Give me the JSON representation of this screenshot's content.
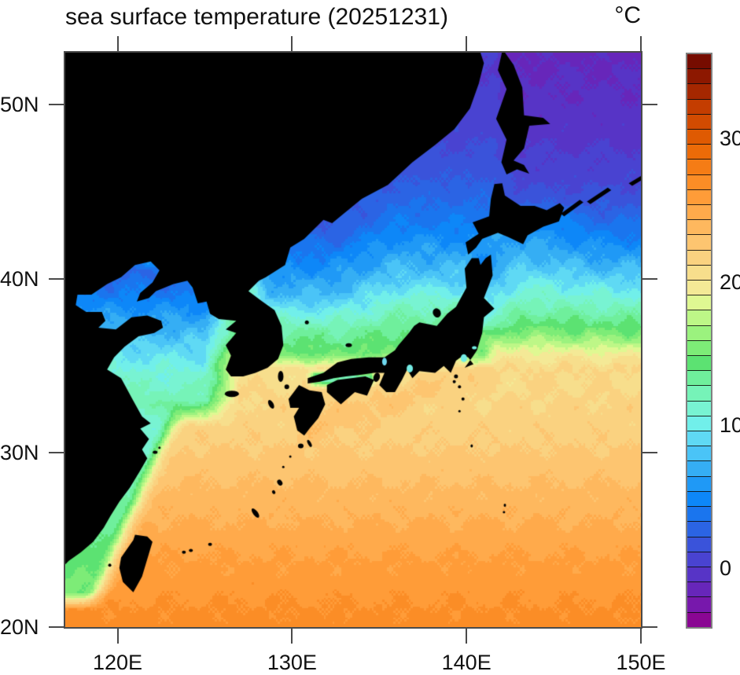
{
  "title": "sea surface temperature (20251231)",
  "units_label": "°C",
  "chart_data": {
    "type": "heatmap",
    "subject": "sea surface temperature",
    "date_shown": "20251231",
    "units": "°C",
    "extent": {
      "lon_min": 117,
      "lon_max": 150,
      "lat_min": 20,
      "lat_max": 53
    },
    "grid_resolution_deg": 0.125,
    "axis": {
      "lon_ticks": [
        {
          "value": 120,
          "label": "120E"
        },
        {
          "value": 130,
          "label": "130E"
        },
        {
          "value": 140,
          "label": "140E"
        },
        {
          "value": 150,
          "label": "150E"
        }
      ],
      "lat_ticks": [
        {
          "value": 50,
          "label": "50N"
        },
        {
          "value": 40,
          "label": "40N"
        },
        {
          "value": 30,
          "label": "30N"
        },
        {
          "value": 20,
          "label": "20N"
        }
      ]
    },
    "colorbar": {
      "min": -4,
      "max": 36,
      "n_boxes": 38,
      "tick_labels": [
        {
          "value": 30,
          "label": "30"
        },
        {
          "value": 20,
          "label": "20"
        },
        {
          "value": 10,
          "label": "10"
        },
        {
          "value": 0,
          "label": "0"
        }
      ],
      "palette_cold_to_hot": [
        "#8A0693",
        "#7718AC",
        "#6726BA",
        "#5734C6",
        "#4943D1",
        "#3A53DA",
        "#2B64E4",
        "#1A75EE",
        "#0D87F8",
        "#1F99F6",
        "#35AEF4",
        "#4AC4F7",
        "#5FD9F4",
        "#71EFEA",
        "#78F3D2",
        "#76F3B8",
        "#6FEF9C",
        "#5CE272",
        "#7DEC77",
        "#9BF27E",
        "#BDF787",
        "#DFF892",
        "#F4E996",
        "#F7DE8C",
        "#FAD280",
        "#FDC570",
        "#FEB85E",
        "#FFAA4B",
        "#FF9C38",
        "#FB8D26",
        "#F57C15",
        "#EC6B08",
        "#DF5A02",
        "#D24B01",
        "#C43D00",
        "#A52700",
        "#8D1800",
        "#760C00"
      ]
    },
    "sst_by_latitude": {
      "pacific": [
        [
          20,
          27
        ],
        [
          24,
          25.5
        ],
        [
          28,
          23.5
        ],
        [
          31,
          22
        ],
        [
          33.5,
          21.3
        ],
        [
          34.8,
          20.5
        ],
        [
          35.8,
          18.5
        ],
        [
          36.8,
          16
        ],
        [
          38,
          13.5
        ],
        [
          39.5,
          11
        ],
        [
          41,
          8.5
        ],
        [
          43,
          6
        ],
        [
          45,
          4
        ],
        [
          47,
          2.5
        ],
        [
          50,
          1
        ],
        [
          53,
          0
        ]
      ],
      "yellow_sea": [
        [
          31.5,
          13.5
        ],
        [
          33,
          12.5
        ],
        [
          35,
          10.5
        ],
        [
          36,
          9
        ],
        [
          37,
          7.5
        ],
        [
          38,
          6
        ],
        [
          39,
          4.5
        ],
        [
          40,
          3.5
        ],
        [
          41.5,
          3
        ]
      ],
      "sea_of_japan": [
        [
          34.8,
          16
        ],
        [
          36,
          14.5
        ],
        [
          37,
          13
        ],
        [
          38,
          11.5
        ],
        [
          39,
          10
        ],
        [
          40,
          8.5
        ],
        [
          41.5,
          6.5
        ],
        [
          43,
          4.5
        ],
        [
          45,
          2.8
        ],
        [
          47,
          1.5
        ],
        [
          49,
          0.8
        ],
        [
          53,
          0.2
        ]
      ],
      "okhotsk": [
        [
          43,
          4
        ],
        [
          44,
          2.5
        ],
        [
          45,
          1.5
        ],
        [
          46,
          0.8
        ],
        [
          48,
          0
        ],
        [
          50,
          -0.6
        ],
        [
          53,
          -1
        ]
      ]
    },
    "land_color": "#000000",
    "land_polygons_lonlat": {
      "asia_mainland_korea": [
        117,
        53.3,
        140.7,
        53.3,
        141.0,
        52.4,
        140.7,
        51.2,
        140.2,
        49.8,
        139.3,
        48.6,
        138.2,
        47.7,
        136.9,
        46.7,
        135.5,
        45.4,
        134.0,
        44.6,
        132.9,
        43.7,
        132.3,
        43.2,
        131.8,
        43.4,
        131.2,
        42.8,
        130.7,
        42.3,
        129.9,
        41.8,
        129.6,
        40.8,
        128.5,
        40.1,
        128.1,
        39.9,
        127.5,
        39.3,
        128.3,
        38.7,
        129.0,
        38.2,
        129.4,
        37.3,
        129.5,
        36.2,
        129.2,
        35.4,
        128.6,
        34.9,
        127.9,
        34.6,
        127.2,
        34.4,
        126.5,
        34.4,
        126.2,
        34.8,
        126.5,
        35.6,
        126.2,
        36.2,
        126.8,
        36.9,
        126.2,
        37.1,
        126.8,
        37.6,
        125.8,
        37.7,
        125.3,
        38.0,
        125.1,
        38.7,
        124.6,
        38.6,
        124.3,
        39.5,
        124.0,
        39.9,
        123.2,
        39.7,
        122.2,
        39.3,
        121.8,
        38.9,
        121.1,
        38.7,
        121.3,
        39.2,
        122.0,
        39.8,
        122.4,
        40.5,
        121.9,
        41.0,
        121.0,
        40.8,
        120.2,
        40.1,
        119.4,
        39.7,
        118.5,
        39.1,
        117.7,
        39.1,
        117.6,
        38.5,
        118.2,
        38.1,
        119.1,
        38.1,
        119.3,
        37.6,
        118.9,
        37.2,
        119.9,
        37.1,
        120.8,
        37.8,
        121.7,
        37.9,
        122.5,
        37.6,
        122.6,
        37.2,
        122.1,
        36.9,
        121.2,
        36.7,
        120.4,
        36.1,
        119.8,
        35.5,
        119.4,
        34.8,
        120.2,
        34.3,
        120.9,
        33.0,
        121.4,
        32.1,
        121.9,
        31.7,
        121.3,
        31.4,
        121.8,
        30.8,
        121.4,
        30.2,
        121.7,
        29.7,
        121.3,
        29.0,
        120.7,
        28.0,
        120.1,
        27.2,
        119.6,
        26.4,
        119.2,
        25.7,
        118.6,
        24.9,
        117.9,
        24.3,
        117.2,
        23.8,
        117.0,
        23.6
      ],
      "honshu": [
        130.9,
        34.0,
        131.6,
        34.1,
        132.4,
        34.3,
        133.1,
        34.4,
        134.0,
        34.5,
        134.7,
        34.6,
        135.3,
        34.6,
        135.0,
        33.9,
        135.4,
        33.5,
        135.9,
        33.5,
        136.3,
        34.2,
        136.6,
        34.8,
        136.9,
        34.3,
        137.3,
        34.7,
        138.2,
        34.6,
        138.7,
        35.0,
        139.1,
        34.6,
        139.4,
        35.3,
        139.8,
        35.6,
        140.1,
        35.5,
        140.4,
        35.1,
        139.9,
        34.9,
        140.4,
        35.6,
        140.6,
        35.9,
        140.9,
        36.9,
        141.0,
        37.8,
        141.6,
        38.3,
        141.0,
        38.9,
        141.5,
        40.2,
        141.4,
        41.4,
        141.1,
        41.2,
        140.8,
        40.8,
        140.7,
        41.2,
        140.3,
        41.2,
        139.9,
        40.6,
        140.0,
        39.5,
        139.4,
        38.4,
        138.9,
        38.0,
        138.3,
        37.3,
        137.3,
        37.5,
        137.0,
        37.3,
        136.7,
        36.9,
        136.1,
        36.2,
        135.9,
        35.9,
        135.3,
        35.5,
        134.4,
        35.5,
        133.4,
        35.4,
        132.6,
        35.2,
        131.8,
        34.6,
        130.9,
        34.3
      ],
      "kyushu": [
        130.4,
        33.9,
        131.0,
        33.6,
        131.7,
        33.5,
        131.9,
        32.8,
        131.5,
        32.0,
        131.0,
        31.4,
        130.7,
        31.0,
        130.3,
        31.3,
        130.1,
        32.1,
        130.4,
        32.6,
        129.9,
        32.6,
        129.8,
        33.1,
        130.1,
        33.5
      ],
      "shikoku": [
        132.0,
        33.5,
        132.8,
        32.8,
        133.6,
        33.5,
        134.3,
        33.3,
        134.7,
        34.2,
        134.2,
        34.4,
        133.4,
        34.3,
        132.6,
        34.2,
        132.0,
        33.9
      ],
      "hokkaido": [
        140.1,
        41.4,
        139.95,
        42.1,
        140.7,
        42.6,
        140.35,
        43.25,
        141.3,
        43.6,
        141.4,
        44.6,
        141.6,
        45.45,
        142.05,
        45.5,
        142.2,
        44.8,
        143.1,
        44.2,
        143.9,
        44.2,
        144.6,
        43.95,
        145.35,
        44.35,
        145.6,
        44.1,
        145.3,
        43.3,
        144.4,
        43.0,
        143.5,
        42.5,
        143.25,
        42.0,
        142.4,
        42.4,
        141.8,
        42.65,
        140.9,
        42.3,
        140.55,
        41.8
      ],
      "sakhalin": [
        142.0,
        53.3,
        142.7,
        52.3,
        143.2,
        51.0,
        143.3,
        49.4,
        144.4,
        49.25,
        144.8,
        48.9,
        143.6,
        48.8,
        143.3,
        47.5,
        142.7,
        46.8,
        143.3,
        46.55,
        143.6,
        46.05,
        142.9,
        46.3,
        142.3,
        46.0,
        142.0,
        46.7,
        142.3,
        48.0,
        141.7,
        49.2,
        142.3,
        50.9,
        141.8,
        52.0,
        142.1,
        53.3
      ],
      "taiwan": [
        121.0,
        25.3,
        121.7,
        25.2,
        122.0,
        24.9,
        121.4,
        22.9,
        120.9,
        22.0,
        120.3,
        22.6,
        120.1,
        23.4,
        120.2,
        24.0,
        120.9,
        25.0
      ],
      "kunashir": [
        145.4,
        43.75,
        146.5,
        44.55,
        146.7,
        44.4,
        145.6,
        43.6
      ],
      "iturup": [
        146.9,
        44.45,
        148.1,
        45.25,
        148.3,
        45.1,
        147.1,
        44.3
      ],
      "urup": [
        149.3,
        45.5,
        150.4,
        46.15,
        150.5,
        45.95,
        149.5,
        45.35
      ]
    },
    "islands_lonlat_rx_ry_rot": [
      [
        126.55,
        33.4,
        9,
        4,
        0
      ],
      [
        129.35,
        34.4,
        3.5,
        7,
        0
      ],
      [
        129.7,
        33.8,
        3,
        3,
        0
      ],
      [
        128.8,
        32.8,
        3,
        6,
        -0.5
      ],
      [
        138.3,
        38.05,
        5,
        6,
        -0.4
      ],
      [
        133.25,
        36.2,
        4,
        2.5,
        0
      ],
      [
        130.85,
        37.5,
        2.5,
        2.5,
        0
      ],
      [
        134.85,
        34.35,
        4,
        6,
        0.3
      ],
      [
        139.4,
        34.4,
        2.5,
        2.5,
        0
      ],
      [
        139.3,
        34.1,
        2,
        2,
        0
      ],
      [
        139.6,
        33.8,
        2,
        2,
        0
      ],
      [
        139.8,
        33.1,
        2,
        2,
        0
      ],
      [
        139.6,
        32.4,
        1.5,
        1.5,
        0
      ],
      [
        140.3,
        30.4,
        1.5,
        2,
        0
      ],
      [
        142.2,
        27.0,
        1.5,
        2,
        0
      ],
      [
        142.15,
        26.6,
        1.5,
        1.5,
        0
      ],
      [
        130.5,
        30.4,
        3.5,
        3,
        0
      ],
      [
        131.0,
        30.55,
        2,
        5,
        -0.5
      ],
      [
        129.9,
        29.8,
        1.5,
        1.5,
        0
      ],
      [
        129.5,
        29.2,
        1.5,
        1.5,
        0
      ],
      [
        129.3,
        28.3,
        3,
        4,
        -0.6
      ],
      [
        128.95,
        27.75,
        2,
        2.5,
        -0.6
      ],
      [
        127.9,
        26.55,
        3,
        7,
        -0.65
      ],
      [
        125.3,
        24.75,
        2.5,
        2,
        0
      ],
      [
        124.2,
        24.4,
        2.5,
        2,
        0
      ],
      [
        123.8,
        24.3,
        2.5,
        2,
        0
      ],
      [
        119.55,
        23.55,
        2,
        2,
        0
      ],
      [
        122.15,
        30.05,
        3,
        2,
        0
      ],
      [
        122.4,
        30.3,
        1.5,
        1.5,
        0
      ]
    ],
    "inland_water_patches": [
      [
        135.3,
        35.25,
        3,
        5,
        "#6FD8EE"
      ],
      [
        139.85,
        35.45,
        4,
        5,
        "#74EBE4"
      ],
      [
        136.75,
        34.85,
        4,
        5,
        "#74EBE4"
      ],
      [
        140.45,
        36.05,
        3,
        2,
        "#74EBE4"
      ]
    ]
  }
}
